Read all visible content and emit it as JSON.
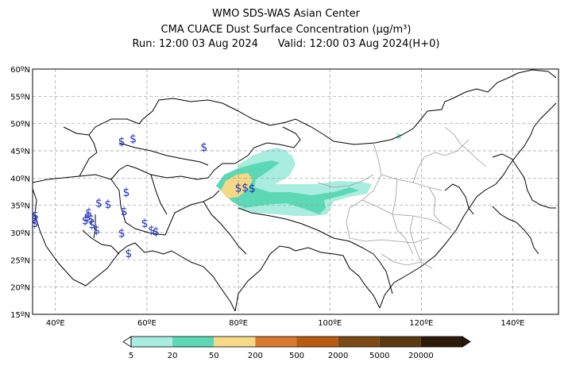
{
  "title": {
    "line1": "WMO SDS-WAS Asian Center",
    "line2": "CMA CUACE Dust Surface Concentration (μg/m³)",
    "run": "Run: 12:00 03 Aug 2024",
    "valid": "Valid: 12:00 03 Aug 2024(H+0)"
  },
  "map": {
    "lon_range": [
      35,
      150
    ],
    "lat_range": [
      15,
      60
    ],
    "lon_ticks": [
      {
        "value": 40,
        "label": "40ºE"
      },
      {
        "value": 60,
        "label": "60ºE"
      },
      {
        "value": 80,
        "label": "80ºE"
      },
      {
        "value": 100,
        "label": "100ºE"
      },
      {
        "value": 120,
        "label": "120ºE"
      },
      {
        "value": 140,
        "label": "140ºE"
      }
    ],
    "lat_ticks": [
      {
        "value": 60,
        "label": "60ºN"
      },
      {
        "value": 55,
        "label": "55ºN"
      },
      {
        "value": 50,
        "label": "50ºN"
      },
      {
        "value": 45,
        "label": "45ºN"
      },
      {
        "value": 40,
        "label": "40ºN"
      },
      {
        "value": 35,
        "label": "35ºN"
      },
      {
        "value": 30,
        "label": "30ºN"
      },
      {
        "value": 25,
        "label": "25ºN"
      },
      {
        "value": 20,
        "label": "20ºN"
      },
      {
        "value": 15,
        "label": "15ºN"
      }
    ],
    "grid": true,
    "station_symbol": "$",
    "station_symbol_color": "#2233bb"
  },
  "colorbar": {
    "labels": [
      "5",
      "20",
      "50",
      "200",
      "500",
      "2000",
      "5000",
      "20000"
    ],
    "colors": [
      "#a9ece0",
      "#5cd9b4",
      "#f5d987",
      "#d97a30",
      "#b85c12",
      "#7c4a14",
      "#5a3812",
      "#2e1a08"
    ]
  },
  "chart_data": {
    "type": "map",
    "title": "CMA CUACE Dust Surface Concentration (μg/m³)",
    "dust_areas": [
      {
        "level": "5-20",
        "region": "Taklimakan / Tarim Basin and Qaidam, extending east to ~107ºE"
      },
      {
        "level": "5-20",
        "region": "Junggar Basin ~44-47ºN, 86-90ºE"
      },
      {
        "level": "20-50",
        "region": "Tarim Basin west ~38-41ºN, 76-90ºE and southern belt ~35-37ºN"
      },
      {
        "level": "50-200",
        "region": "Western Tarim Basin ~38-40ºN, 76-80ºE"
      }
    ]
  }
}
